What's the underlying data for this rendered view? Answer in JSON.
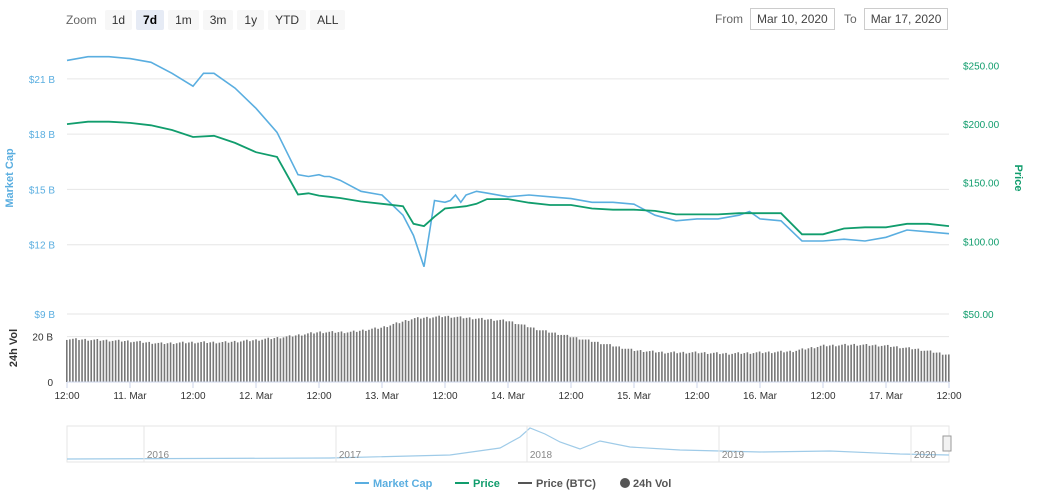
{
  "zoom": {
    "label": "Zoom",
    "buttons": [
      "1d",
      "7d",
      "1m",
      "3m",
      "1y",
      "YTD",
      "ALL"
    ],
    "active": "7d"
  },
  "range": {
    "from_label": "From",
    "from_value": "Mar 10, 2020",
    "to_label": "To",
    "to_value": "Mar 17, 2020"
  },
  "colors": {
    "market_cap": "#5aaee0",
    "price": "#119d6d",
    "volume": "#777777",
    "grid": "#e6e6e6"
  },
  "chart_data": {
    "type": "line",
    "left_axis_title": "Market Cap",
    "right_axis_title": "Price",
    "volume_axis_title": "24h Vol",
    "left_ticks": [
      "$21 B",
      "$18 B",
      "$15 B",
      "$12 B",
      "$9 B"
    ],
    "left_tick_values": [
      21,
      18,
      15,
      12,
      9
    ],
    "right_ticks": [
      "$250.00",
      "$200.00",
      "$150.00",
      "$100.00",
      "$50.00"
    ],
    "right_tick_values": [
      250,
      200,
      150,
      100,
      50
    ],
    "volume_ticks": [
      "20 B",
      "0"
    ],
    "volume_tick_values": [
      20,
      0
    ],
    "x_ticks": [
      "12:00",
      "11. Mar",
      "12:00",
      "12. Mar",
      "12:00",
      "13. Mar",
      "12:00",
      "14. Mar",
      "12:00",
      "15. Mar",
      "12:00",
      "16. Mar",
      "12:00",
      "17. Mar",
      "12:00"
    ],
    "x_tick_hours": [
      0,
      12,
      24,
      36,
      48,
      60,
      72,
      84,
      96,
      108,
      120,
      132,
      144,
      156,
      168
    ],
    "market_cap_ylim": [
      9,
      23
    ],
    "price_ylim": [
      50,
      270
    ],
    "volume_ylim": [
      0,
      30
    ],
    "market_cap": {
      "name": "Market Cap",
      "hours": [
        0,
        4,
        8,
        12,
        16,
        20,
        24,
        26,
        28,
        32,
        36,
        40,
        44,
        46,
        48,
        49,
        50,
        52,
        56,
        60,
        64,
        66,
        68,
        70,
        72,
        73,
        74,
        75,
        76,
        78,
        80,
        84,
        88,
        92,
        96,
        100,
        104,
        108,
        112,
        116,
        120,
        124,
        126,
        128,
        130,
        132,
        136,
        140,
        144,
        148,
        152,
        156,
        160,
        164,
        168
      ],
      "values": [
        22.0,
        22.2,
        22.2,
        22.1,
        21.9,
        21.3,
        20.6,
        21.3,
        21.3,
        20.5,
        19.4,
        18.1,
        15.8,
        15.7,
        15.8,
        15.7,
        15.7,
        15.5,
        14.9,
        14.7,
        13.6,
        12.5,
        10.8,
        14.4,
        14.3,
        14.4,
        14.7,
        14.3,
        14.7,
        14.9,
        14.8,
        14.6,
        14.7,
        14.6,
        14.5,
        14.3,
        14.3,
        14.2,
        13.6,
        13.3,
        13.4,
        13.4,
        13.5,
        13.6,
        13.8,
        13.4,
        13.3,
        12.2,
        12.2,
        12.3,
        12.2,
        12.4,
        12.8,
        12.7,
        12.6
      ]
    },
    "price": {
      "name": "Price",
      "hours": [
        0,
        4,
        8,
        12,
        16,
        20,
        24,
        28,
        32,
        36,
        40,
        44,
        46,
        48,
        50,
        52,
        56,
        60,
        64,
        66,
        68,
        70,
        72,
        74,
        76,
        78,
        80,
        84,
        88,
        92,
        96,
        100,
        104,
        108,
        112,
        116,
        120,
        124,
        128,
        132,
        136,
        140,
        144,
        148,
        152,
        156,
        160,
        164,
        168
      ],
      "values": [
        200,
        202,
        202,
        201,
        199,
        195,
        189,
        190,
        184,
        176,
        172,
        140,
        141,
        139,
        138,
        137,
        134,
        132,
        130,
        115,
        113,
        121,
        128,
        129,
        130,
        132,
        136,
        136,
        133,
        131,
        131,
        128,
        127,
        127,
        126,
        123,
        123,
        123,
        124,
        124,
        124,
        106,
        106,
        111,
        112,
        112,
        115,
        115,
        113
      ]
    },
    "volume": {
      "name": "Price (BTC)",
      "hours": [
        0,
        6,
        12,
        18,
        24,
        30,
        36,
        42,
        48,
        54,
        60,
        66,
        72,
        78,
        84,
        90,
        96,
        102,
        108,
        114,
        120,
        126,
        132,
        138,
        144,
        150,
        156,
        162,
        168
      ],
      "values": [
        19,
        18.5,
        18,
        17,
        17.5,
        17.5,
        18.5,
        20,
        22,
        22,
        24,
        28,
        29,
        28,
        27,
        23,
        20,
        17,
        14,
        13,
        13,
        12.5,
        13,
        13.5,
        16,
        16.5,
        16,
        14.5,
        12
      ]
    },
    "navigator": {
      "labels": [
        "2016",
        "2017",
        "2018",
        "2019",
        "2020"
      ]
    },
    "legend": [
      {
        "name": "Market Cap",
        "kind": "line",
        "color": "#5aaee0"
      },
      {
        "name": "Price",
        "kind": "line",
        "color": "#119d6d"
      },
      {
        "name": "Price (BTC)",
        "kind": "line",
        "color": "#555555"
      },
      {
        "name": "24h Vol",
        "kind": "dot",
        "color": "#555555"
      }
    ],
    "grid": true,
    "legend_position": "bottom-center"
  }
}
